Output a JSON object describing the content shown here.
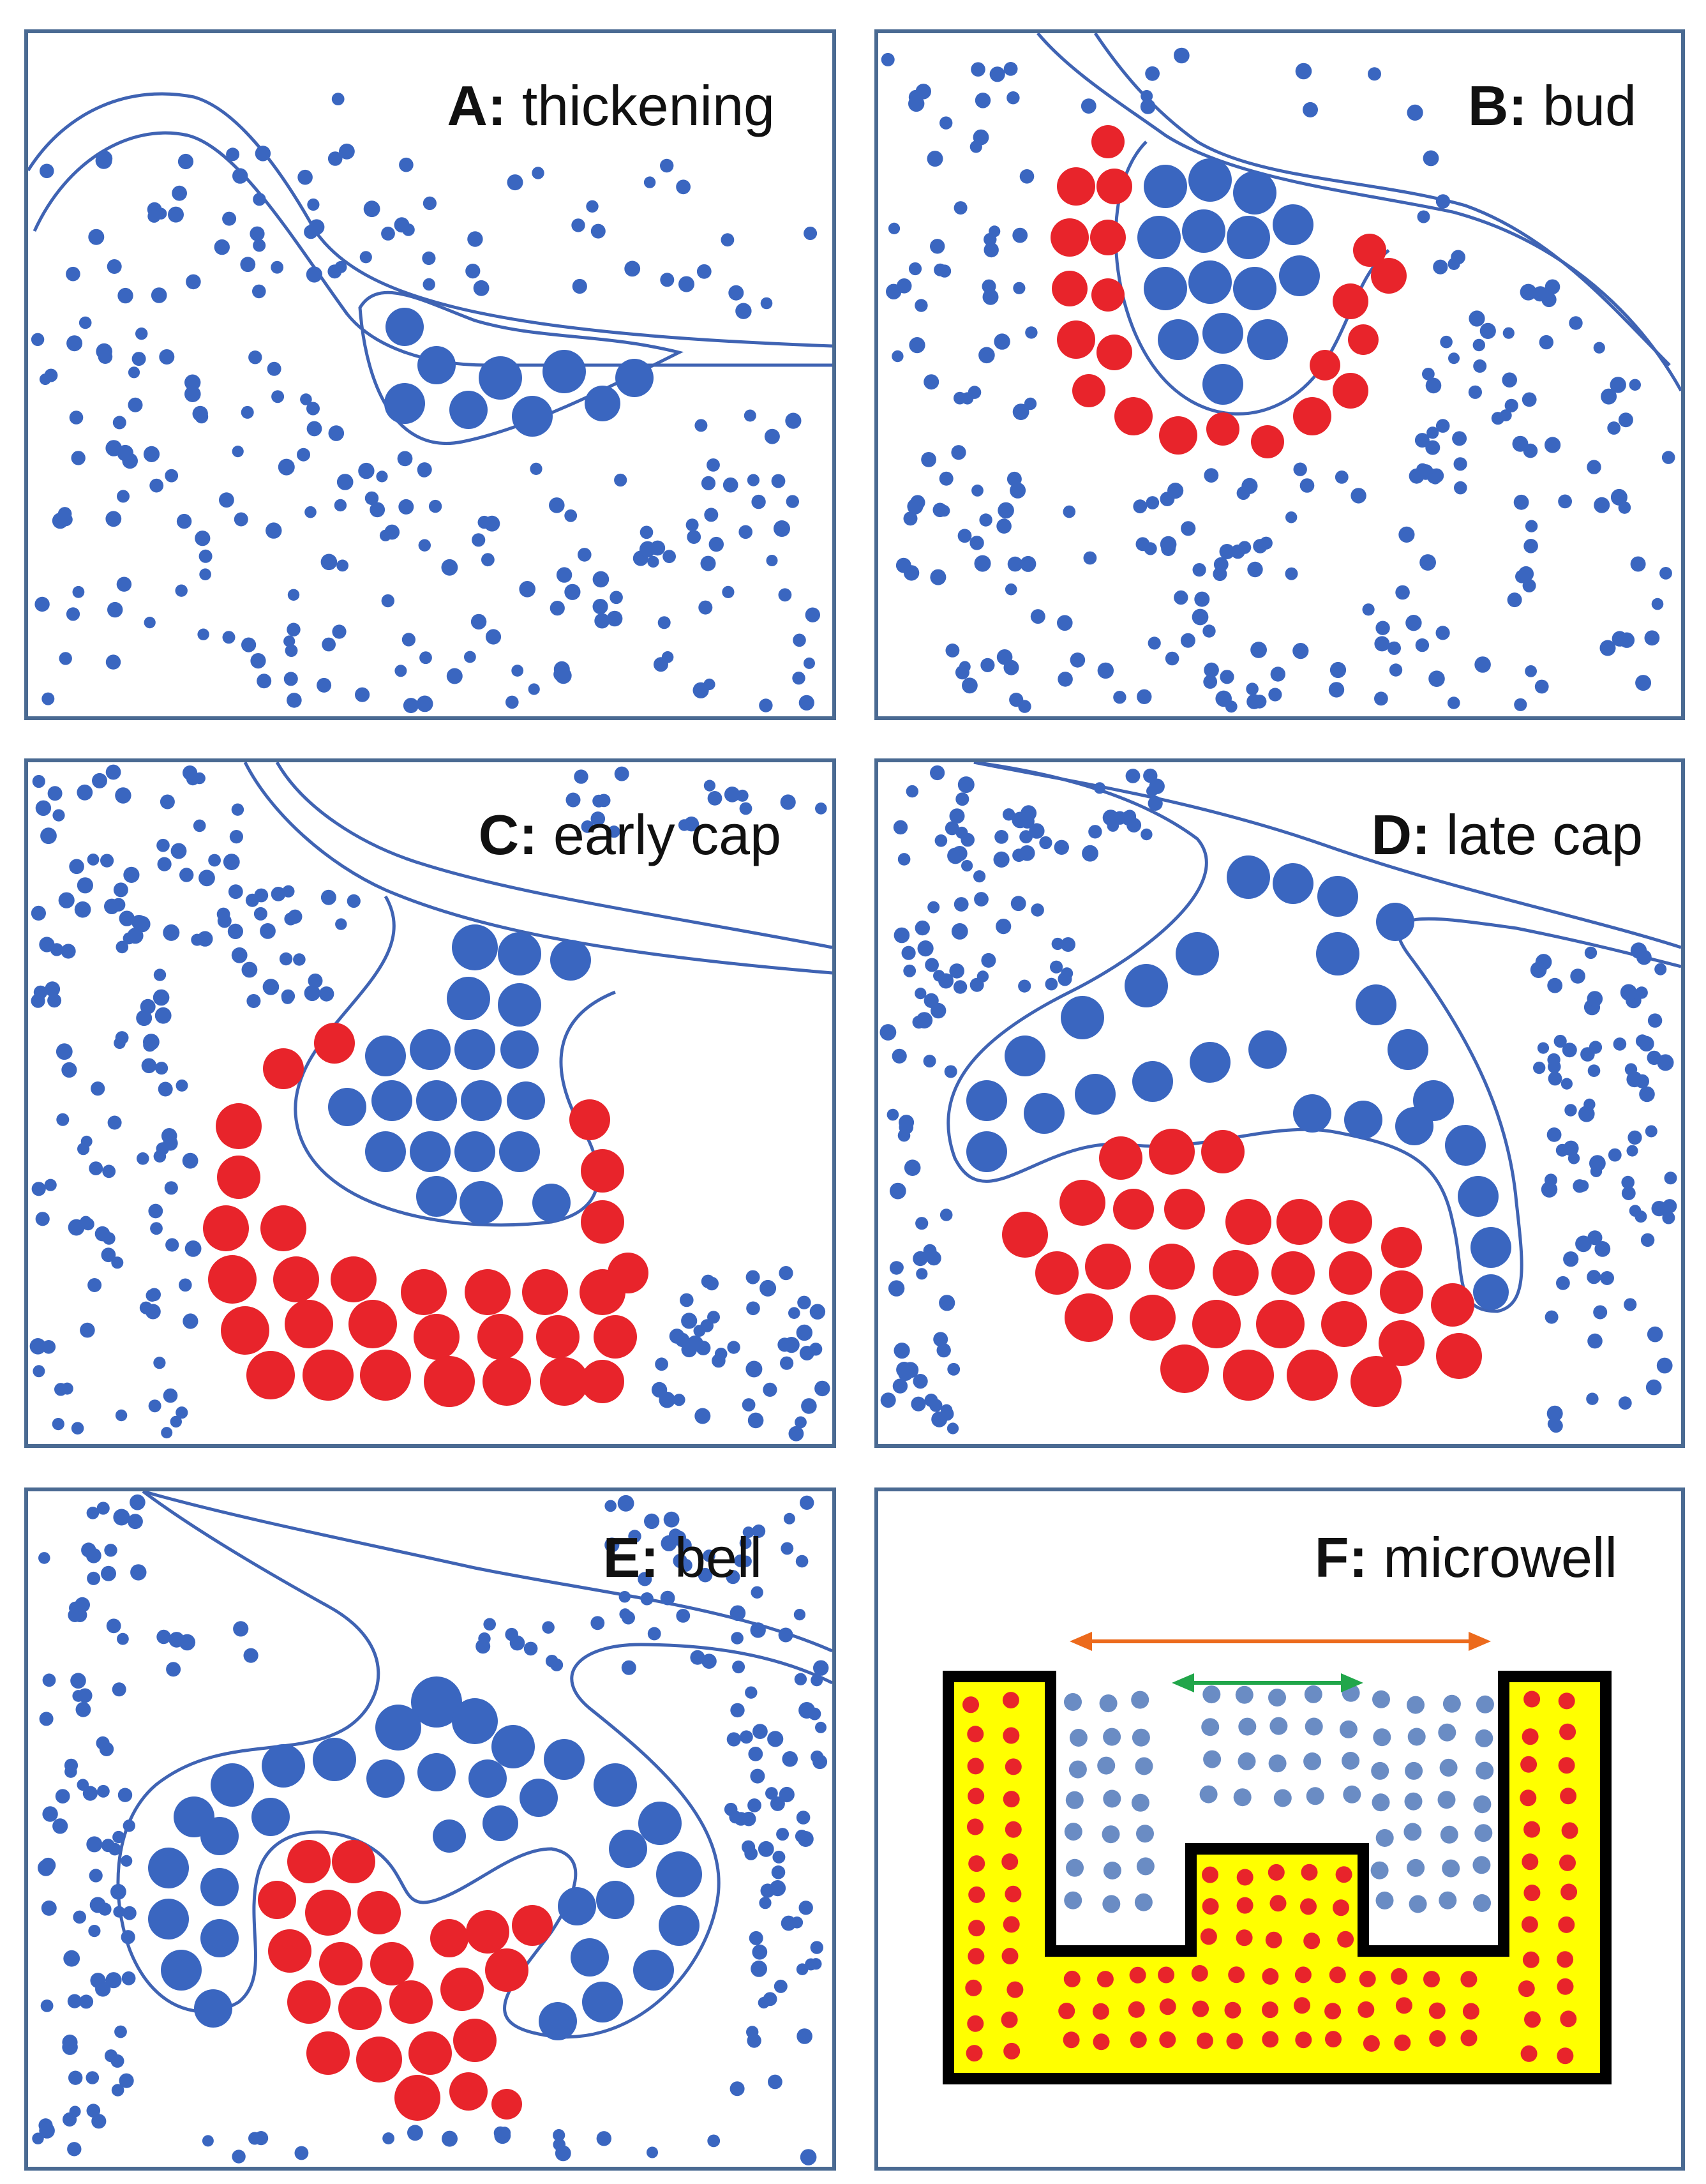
{
  "panels": [
    {
      "id": "A",
      "letter": "A:",
      "title": "thickening"
    },
    {
      "id": "B",
      "letter": "B:",
      "title": "bud"
    },
    {
      "id": "C",
      "letter": "C:",
      "title": "early cap"
    },
    {
      "id": "D",
      "letter": "D:",
      "title": "late cap"
    },
    {
      "id": "E",
      "letter": "E:",
      "title": "bell"
    },
    {
      "id": "F",
      "letter": "F:",
      "title": "microwell"
    }
  ],
  "colors": {
    "epithelium_blue": "#3a66c0",
    "outline_blue": "#3f63b3",
    "mesenchyme_red": "#e8242b",
    "panel_border": "#4a6a92",
    "microwell_fill": "#ffff00",
    "microwell_outline": "#000000",
    "microwell_cells": "#6a8cc4",
    "arrow_orange": "#ec6a1c",
    "arrow_green": "#21a64a"
  }
}
